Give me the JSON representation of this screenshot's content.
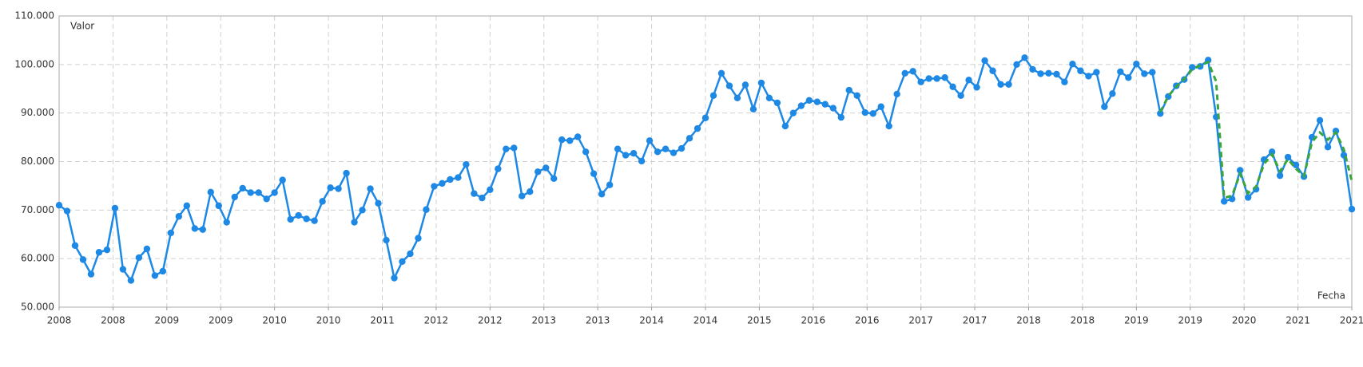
{
  "chart_data": {
    "type": "line",
    "xlabel": "Fecha",
    "ylabel": "Valor",
    "grid": true,
    "xlim": [
      0,
      162
    ],
    "xticks": [
      {
        "value": 0,
        "label": "2008"
      },
      {
        "value": 6.75,
        "label": "2008"
      },
      {
        "value": 13.5,
        "label": "2009"
      },
      {
        "value": 20.25,
        "label": "2009"
      },
      {
        "value": 27,
        "label": "2010"
      },
      {
        "value": 33.75,
        "label": "2010"
      },
      {
        "value": 40.5,
        "label": "2011"
      },
      {
        "value": 47.25,
        "label": "2012"
      },
      {
        "value": 54,
        "label": "2012"
      },
      {
        "value": 60.75,
        "label": "2013"
      },
      {
        "value": 67.5,
        "label": "2013"
      },
      {
        "value": 74.25,
        "label": "2014"
      },
      {
        "value": 81,
        "label": "2014"
      },
      {
        "value": 87.75,
        "label": "2015"
      },
      {
        "value": 94.5,
        "label": "2016"
      },
      {
        "value": 101.25,
        "label": "2016"
      },
      {
        "value": 108,
        "label": "2017"
      },
      {
        "value": 114.75,
        "label": "2017"
      },
      {
        "value": 121.5,
        "label": "2018"
      },
      {
        "value": 128.25,
        "label": "2018"
      },
      {
        "value": 135,
        "label": "2019"
      },
      {
        "value": 141.75,
        "label": "2019"
      },
      {
        "value": 148.5,
        "label": "2020"
      },
      {
        "value": 155.25,
        "label": "2021"
      },
      {
        "value": 162,
        "label": "2021"
      }
    ],
    "ylim": [
      50000,
      110000
    ],
    "yticks": [
      {
        "value": 50000,
        "label": "50.000"
      },
      {
        "value": 60000,
        "label": "60.000"
      },
      {
        "value": 70000,
        "label": "70.000"
      },
      {
        "value": 80000,
        "label": "80.000"
      },
      {
        "value": 90000,
        "label": "90.000"
      },
      {
        "value": 100000,
        "label": "100.000"
      },
      {
        "value": 110000,
        "label": "110.000"
      }
    ],
    "series": [
      {
        "color": "#1e88e5",
        "markers": true,
        "dashed": false,
        "values": [
          71000,
          69800,
          62700,
          59800,
          56800,
          61300,
          61800,
          70400,
          57800,
          55500,
          60200,
          62000,
          56500,
          57400,
          65300,
          68700,
          70900,
          66200,
          66000,
          73700,
          70900,
          67500,
          72700,
          74500,
          73600,
          73600,
          72300,
          73600,
          76200,
          68100,
          68900,
          68200,
          67800,
          71800,
          74600,
          74400,
          77600,
          67500,
          70000,
          74400,
          71400,
          63800,
          56000,
          59400,
          61000,
          64200,
          70100,
          74900,
          75500,
          76300,
          76700,
          79400,
          73400,
          72500,
          74200,
          78500,
          82600,
          82800,
          72900,
          73800,
          77900,
          78700,
          76500,
          84500,
          84300,
          85100,
          82000,
          77500,
          73300,
          75200,
          82600,
          81300,
          81700,
          80100,
          84300,
          82000,
          82600,
          81800,
          82700,
          84800,
          86800,
          89000,
          93600,
          98200,
          95600,
          93100,
          95800,
          90800,
          96200,
          93100,
          92100,
          87300,
          90000,
          91500,
          92600,
          92300,
          91800,
          91000,
          89100,
          94700,
          93600,
          90100,
          89900,
          91300,
          87300,
          93900,
          98200,
          98600,
          96400,
          97100,
          97100,
          97300,
          95400,
          93600,
          96800,
          95300,
          100800,
          98700,
          95900,
          95900,
          100000,
          101400,
          99000,
          98100,
          98200,
          98000,
          96400,
          100100,
          98700,
          97600,
          98400,
          91300,
          94000,
          98500,
          97300,
          100100,
          98100,
          98400,
          89900,
          93400,
          95600,
          96900,
          99400,
          99600,
          100900,
          89200,
          71800,
          72300,
          78200,
          72600,
          74300,
          80400,
          82000,
          77100,
          80900,
          79300,
          76900,
          85000,
          88500,
          83000,
          86300,
          81300,
          70200
        ]
      },
      {
        "color": "#3aa63a",
        "markers": false,
        "dashed": true,
        "values": [
          null,
          null,
          null,
          null,
          null,
          null,
          null,
          null,
          null,
          null,
          null,
          null,
          null,
          null,
          null,
          null,
          null,
          null,
          null,
          null,
          null,
          null,
          null,
          null,
          null,
          null,
          null,
          null,
          null,
          null,
          null,
          null,
          null,
          null,
          null,
          null,
          null,
          null,
          null,
          null,
          null,
          null,
          null,
          null,
          null,
          null,
          null,
          null,
          null,
          null,
          null,
          null,
          null,
          null,
          null,
          null,
          null,
          null,
          null,
          null,
          null,
          null,
          null,
          null,
          null,
          null,
          null,
          null,
          null,
          null,
          null,
          null,
          null,
          null,
          null,
          null,
          null,
          null,
          null,
          null,
          null,
          null,
          null,
          null,
          null,
          null,
          null,
          null,
          null,
          null,
          null,
          null,
          null,
          null,
          null,
          null,
          null,
          null,
          null,
          null,
          null,
          null,
          null,
          null,
          null,
          null,
          null,
          null,
          null,
          null,
          null,
          null,
          null,
          null,
          null,
          null,
          null,
          null,
          null,
          null,
          null,
          null,
          null,
          null,
          null,
          null,
          null,
          null,
          null,
          null,
          null,
          null,
          null,
          null,
          null,
          null,
          null,
          null,
          90200,
          93500,
          95400,
          97000,
          99000,
          99800,
          100500,
          96500,
          72500,
          73000,
          77500,
          73500,
          74800,
          79500,
          81500,
          78000,
          80500,
          78500,
          77000,
          84000,
          86000,
          84500,
          86000,
          82500,
          76000
        ]
      }
    ]
  }
}
